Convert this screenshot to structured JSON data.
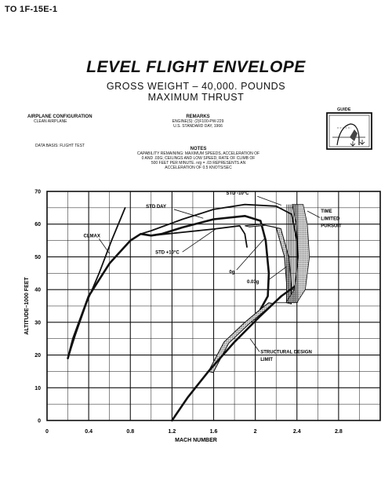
{
  "doc_id": "TO  1F-15E-1",
  "title": "LEVEL FLIGHT ENVELOPE",
  "subtitle_line1": "GROSS WEIGHT –  40,000.  POUNDS",
  "subtitle_line2": "MAXIMUM THRUST",
  "config_heading": "AIRPLANE CONFIGURATION",
  "config_value": "CLEAN AIRPLANE",
  "data_basis": "DATA BASIS: FLIGHT TEST",
  "remarks_heading": "REMARKS",
  "remarks_lines": [
    "ENGINE(S): (2)F100-PW-229",
    "U.S. STANDARD DAY, 1966"
  ],
  "notes_heading": "NOTES",
  "notes_lines": [
    "CAPABILITY REMAINING: MAXIMUM SPEEDS, ACCELERATION OF",
    "0 AND .03G; CEILINGS AND LOW SPEED, RATE OF CLIMB OF",
    "500 FEET PER MINUTE. n/g = .03 REPRESENTS AN",
    "ACCELERATION OF 0.5 KNOTS/SEC"
  ],
  "guide_label": "GUIDE",
  "chart_data": {
    "type": "line",
    "xlabel": "MACH NUMBER",
    "ylabel": "ALTITUDE–1000 FEET",
    "xlim": [
      0,
      3.2
    ],
    "ylim": [
      0,
      70
    ],
    "xticks": [
      0,
      0.4,
      0.8,
      1.2,
      1.6,
      2.0,
      2.4,
      2.8
    ],
    "xtick_labels": [
      "0",
      "0.4",
      "0.8",
      "1.2",
      "1.6",
      "2",
      "2.4",
      "2.8"
    ],
    "yticks": [
      0,
      10,
      20,
      30,
      40,
      50,
      60,
      70
    ],
    "ytick_labels": [
      "0",
      "10",
      "20",
      "30",
      "40",
      "50",
      "60",
      "70"
    ],
    "grid": true,
    "series": [
      {
        "name": "CLMAX",
        "x": [
          0.2,
          0.27,
          0.38,
          0.5,
          0.62,
          0.75
        ],
        "y": [
          19,
          26,
          36,
          45,
          55,
          65
        ]
      },
      {
        "name": "STD DAY",
        "x": [
          0.2,
          0.25,
          0.4,
          0.6,
          0.8,
          0.9,
          1.0,
          1.1,
          1.3,
          1.6,
          1.9,
          2.05,
          2.1,
          2.13,
          2.12,
          2.05
        ],
        "y": [
          19,
          25,
          38,
          48,
          55,
          57,
          56.5,
          57,
          59,
          61.5,
          62.5,
          61,
          55,
          45,
          38,
          34
        ]
      },
      {
        "name": "STD -10°C",
        "x": [
          0.9,
          1.0,
          1.3,
          1.6,
          1.9,
          2.2,
          2.35,
          2.4,
          2.42,
          2.43
        ],
        "y": [
          57,
          58,
          61.5,
          64.5,
          66,
          65.5,
          63,
          55,
          45,
          38
        ]
      },
      {
        "name": "STD +10°C",
        "x": [
          1.0,
          1.3,
          1.6,
          1.85,
          1.9,
          1.92
        ],
        "y": [
          56.5,
          57.5,
          58.5,
          59.5,
          57,
          53
        ]
      },
      {
        "name": "0.03g",
        "x": [
          1.55,
          1.7,
          1.9,
          2.05,
          2.13
        ],
        "y": [
          15,
          24,
          30,
          34,
          36
        ]
      },
      {
        "name": "0g",
        "x": [
          1.9,
          2.05,
          2.2,
          2.28,
          2.3,
          2.3
        ],
        "y": [
          59.5,
          60,
          59,
          50,
          42,
          36
        ]
      },
      {
        "name": "STRUCTURAL DESIGN LIMIT",
        "x": [
          1.2,
          1.35,
          1.55,
          1.8,
          2.05,
          2.25,
          2.38,
          2.46
        ],
        "y": [
          0,
          7,
          15,
          24,
          32,
          38,
          41,
          44
        ]
      },
      {
        "name": "TIME LIMITED PURSUIT",
        "x": [
          2.3,
          2.4,
          2.48,
          2.52,
          2.5,
          2.46
        ],
        "y": [
          36,
          36,
          40,
          50,
          60,
          66
        ]
      }
    ],
    "annotations": [
      {
        "text": "CLMAX",
        "x": 0.35,
        "y": 56
      },
      {
        "text": "STD DAY",
        "x": 0.95,
        "y": 65
      },
      {
        "text": "STD -10°C",
        "x": 1.72,
        "y": 69
      },
      {
        "text": "STD +10°C",
        "x": 1.04,
        "y": 51
      },
      {
        "text": "0g",
        "x": 1.75,
        "y": 45
      },
      {
        "text": "0.03g",
        "x": 1.92,
        "y": 42
      },
      {
        "text": "TIME",
        "x": 2.63,
        "y": 63.5
      },
      {
        "text": "LIMITED",
        "x": 2.63,
        "y": 61.3
      },
      {
        "text": "PURSUIT",
        "x": 2.63,
        "y": 59.1
      },
      {
        "text": "STRUCTURAL DESIGN",
        "x": 2.05,
        "y": 20.5
      },
      {
        "text": "LIMIT",
        "x": 2.05,
        "y": 18.2
      }
    ]
  }
}
